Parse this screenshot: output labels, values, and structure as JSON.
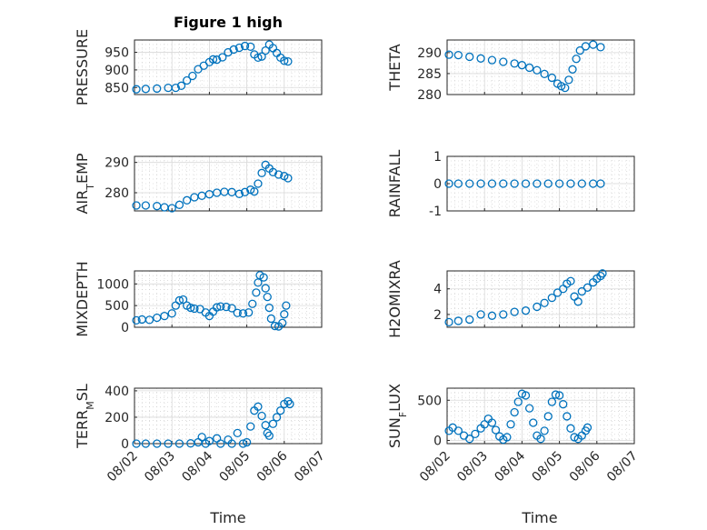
{
  "figure": {
    "title": "Figure 1 high",
    "xlabel": "Time"
  },
  "colors": {
    "series": "#0072BD",
    "grid": "#d9d9d9",
    "axis": "#262626"
  },
  "x_ticks": [
    "08/02",
    "08/03",
    "08/04",
    "08/05",
    "08/06",
    "08/07"
  ],
  "chart_data": [
    {
      "type": "scatter",
      "name": "PRESSURE",
      "ylabel": "PRESSURE",
      "xlim": [
        0,
        5
      ],
      "ylim": [
        830,
        985
      ],
      "yticks": [
        850,
        900,
        950
      ],
      "ytick_labels": [
        "850",
        "900",
        "950"
      ],
      "grid": true,
      "points": [
        [
          0.05,
          845
        ],
        [
          0.3,
          846
        ],
        [
          0.6,
          847
        ],
        [
          0.9,
          849
        ],
        [
          1.1,
          849
        ],
        [
          1.25,
          855
        ],
        [
          1.4,
          870
        ],
        [
          1.55,
          883
        ],
        [
          1.7,
          902
        ],
        [
          1.85,
          912
        ],
        [
          2.0,
          922
        ],
        [
          2.1,
          930
        ],
        [
          2.2,
          929
        ],
        [
          2.35,
          936
        ],
        [
          2.5,
          950
        ],
        [
          2.65,
          958
        ],
        [
          2.8,
          963
        ],
        [
          2.95,
          968
        ],
        [
          3.1,
          966
        ],
        [
          3.2,
          944
        ],
        [
          3.3,
          935
        ],
        [
          3.4,
          938
        ],
        [
          3.5,
          955
        ],
        [
          3.6,
          972
        ],
        [
          3.7,
          962
        ],
        [
          3.8,
          948
        ],
        [
          3.9,
          935
        ],
        [
          4.0,
          926
        ],
        [
          4.1,
          924
        ]
      ]
    },
    {
      "type": "scatter",
      "name": "THETA",
      "ylabel": "THETA",
      "xlim": [
        0,
        5
      ],
      "ylim": [
        280,
        293
      ],
      "yticks": [
        280,
        285,
        290
      ],
      "ytick_labels": [
        "280",
        "285",
        "290"
      ],
      "grid": true,
      "points": [
        [
          0.05,
          289.5
        ],
        [
          0.3,
          289.4
        ],
        [
          0.6,
          289.0
        ],
        [
          0.9,
          288.6
        ],
        [
          1.2,
          288.2
        ],
        [
          1.5,
          287.8
        ],
        [
          1.8,
          287.4
        ],
        [
          2.0,
          287.0
        ],
        [
          2.2,
          286.4
        ],
        [
          2.4,
          285.8
        ],
        [
          2.6,
          284.9
        ],
        [
          2.8,
          284.0
        ],
        [
          2.95,
          282.6
        ],
        [
          3.05,
          282.0
        ],
        [
          3.15,
          281.6
        ],
        [
          3.25,
          283.5
        ],
        [
          3.35,
          286.0
        ],
        [
          3.45,
          288.5
        ],
        [
          3.55,
          290.5
        ],
        [
          3.7,
          291.5
        ],
        [
          3.9,
          291.9
        ],
        [
          4.1,
          291.3
        ]
      ]
    },
    {
      "type": "scatter",
      "name": "AIR_TEMP",
      "ylabel": "AIR_TEMP",
      "xlim": [
        0,
        5
      ],
      "ylim": [
        274,
        292
      ],
      "yticks": [
        280,
        290
      ],
      "ytick_labels": [
        "280",
        "290"
      ],
      "grid": true,
      "points": [
        [
          0.05,
          275.8
        ],
        [
          0.3,
          275.8
        ],
        [
          0.6,
          275.6
        ],
        [
          0.8,
          275.2
        ],
        [
          1.0,
          274.9
        ],
        [
          1.2,
          276.0
        ],
        [
          1.4,
          277.5
        ],
        [
          1.6,
          278.5
        ],
        [
          1.8,
          279.0
        ],
        [
          2.0,
          279.5
        ],
        [
          2.2,
          280.0
        ],
        [
          2.4,
          280.3
        ],
        [
          2.6,
          280.2
        ],
        [
          2.8,
          279.6
        ],
        [
          2.95,
          280.2
        ],
        [
          3.1,
          281.0
        ],
        [
          3.2,
          280.4
        ],
        [
          3.3,
          283.0
        ],
        [
          3.4,
          286.5
        ],
        [
          3.5,
          289.2
        ],
        [
          3.6,
          288.0
        ],
        [
          3.7,
          286.8
        ],
        [
          3.85,
          286.0
        ],
        [
          4.0,
          285.5
        ],
        [
          4.1,
          284.8
        ]
      ]
    },
    {
      "type": "scatter",
      "name": "RAINFALL",
      "ylabel": "RAINFALL",
      "xlim": [
        0,
        5
      ],
      "ylim": [
        -1,
        1
      ],
      "yticks": [
        -1,
        0,
        1
      ],
      "ytick_labels": [
        "-1",
        "0",
        "1"
      ],
      "grid": true,
      "points": [
        [
          0.05,
          0
        ],
        [
          0.3,
          0
        ],
        [
          0.6,
          0
        ],
        [
          0.9,
          0
        ],
        [
          1.2,
          0
        ],
        [
          1.5,
          0
        ],
        [
          1.8,
          0
        ],
        [
          2.1,
          0
        ],
        [
          2.4,
          0
        ],
        [
          2.7,
          0
        ],
        [
          3.0,
          0
        ],
        [
          3.3,
          0
        ],
        [
          3.6,
          0
        ],
        [
          3.9,
          0
        ],
        [
          4.1,
          0
        ]
      ]
    },
    {
      "type": "scatter",
      "name": "MIXDEPTH",
      "ylabel": "MIXDEPTH",
      "xlim": [
        0,
        5
      ],
      "ylim": [
        0,
        1300
      ],
      "yticks": [
        0,
        500,
        1000
      ],
      "ytick_labels": [
        "0",
        "500",
        "1000"
      ],
      "grid": true,
      "points": [
        [
          0.05,
          160
        ],
        [
          0.2,
          180
        ],
        [
          0.4,
          170
        ],
        [
          0.6,
          220
        ],
        [
          0.8,
          260
        ],
        [
          1.0,
          320
        ],
        [
          1.1,
          500
        ],
        [
          1.2,
          620
        ],
        [
          1.3,
          640
        ],
        [
          1.4,
          500
        ],
        [
          1.5,
          450
        ],
        [
          1.6,
          430
        ],
        [
          1.75,
          420
        ],
        [
          1.9,
          340
        ],
        [
          2.0,
          260
        ],
        [
          2.1,
          360
        ],
        [
          2.2,
          460
        ],
        [
          2.3,
          480
        ],
        [
          2.45,
          470
        ],
        [
          2.6,
          440
        ],
        [
          2.75,
          330
        ],
        [
          2.9,
          320
        ],
        [
          3.05,
          340
        ],
        [
          3.15,
          540
        ],
        [
          3.25,
          800
        ],
        [
          3.3,
          1030
        ],
        [
          3.35,
          1200
        ],
        [
          3.45,
          1150
        ],
        [
          3.5,
          900
        ],
        [
          3.55,
          700
        ],
        [
          3.6,
          450
        ],
        [
          3.65,
          200
        ],
        [
          3.75,
          30
        ],
        [
          3.85,
          20
        ],
        [
          3.95,
          100
        ],
        [
          4.0,
          300
        ],
        [
          4.05,
          500
        ]
      ]
    },
    {
      "type": "scatter",
      "name": "H2OMIXRA",
      "ylabel": "H2OMIXRA",
      "xlim": [
        0,
        5
      ],
      "ylim": [
        1,
        5.4
      ],
      "yticks": [
        2,
        4
      ],
      "ytick_labels": [
        "2",
        "4"
      ],
      "grid": true,
      "points": [
        [
          0.05,
          1.4
        ],
        [
          0.3,
          1.5
        ],
        [
          0.6,
          1.6
        ],
        [
          0.9,
          2.0
        ],
        [
          1.2,
          1.9
        ],
        [
          1.5,
          2.0
        ],
        [
          1.8,
          2.2
        ],
        [
          2.1,
          2.3
        ],
        [
          2.4,
          2.6
        ],
        [
          2.6,
          2.9
        ],
        [
          2.8,
          3.3
        ],
        [
          2.95,
          3.7
        ],
        [
          3.1,
          4.0
        ],
        [
          3.2,
          4.4
        ],
        [
          3.3,
          4.6
        ],
        [
          3.4,
          3.4
        ],
        [
          3.5,
          3.0
        ],
        [
          3.6,
          3.8
        ],
        [
          3.75,
          4.1
        ],
        [
          3.9,
          4.5
        ],
        [
          4.0,
          4.8
        ],
        [
          4.1,
          5.0
        ],
        [
          4.15,
          5.2
        ]
      ]
    },
    {
      "type": "scatter",
      "name": "TERR_MSL",
      "ylabel": "TERR_MSL",
      "xlim": [
        0,
        5
      ],
      "ylim": [
        0,
        420
      ],
      "yticks": [
        0,
        200,
        400
      ],
      "ytick_labels": [
        "0",
        "200",
        "400"
      ],
      "grid": true,
      "points": [
        [
          0.05,
          0
        ],
        [
          0.3,
          0
        ],
        [
          0.6,
          0
        ],
        [
          0.9,
          0
        ],
        [
          1.2,
          0
        ],
        [
          1.5,
          2
        ],
        [
          1.7,
          10
        ],
        [
          1.8,
          50
        ],
        [
          1.9,
          0
        ],
        [
          2.0,
          20
        ],
        [
          2.2,
          40
        ],
        [
          2.3,
          0
        ],
        [
          2.5,
          30
        ],
        [
          2.6,
          0
        ],
        [
          2.75,
          80
        ],
        [
          2.9,
          0
        ],
        [
          3.0,
          10
        ],
        [
          3.1,
          130
        ],
        [
          3.2,
          250
        ],
        [
          3.3,
          280
        ],
        [
          3.4,
          210
        ],
        [
          3.5,
          140
        ],
        [
          3.55,
          80
        ],
        [
          3.6,
          60
        ],
        [
          3.7,
          150
        ],
        [
          3.8,
          200
        ],
        [
          3.9,
          250
        ],
        [
          4.0,
          300
        ],
        [
          4.1,
          320
        ],
        [
          4.15,
          300
        ]
      ]
    },
    {
      "type": "scatter",
      "name": "SUN_FLUX",
      "ylabel": "SUN_FLUX",
      "xlim": [
        0,
        5
      ],
      "ylim": [
        -40,
        650
      ],
      "yticks": [
        0,
        500
      ],
      "ytick_labels": [
        "0",
        "500"
      ],
      "grid": true,
      "points": [
        [
          0.05,
          120
        ],
        [
          0.15,
          160
        ],
        [
          0.3,
          120
        ],
        [
          0.45,
          60
        ],
        [
          0.6,
          20
        ],
        [
          0.75,
          80
        ],
        [
          0.9,
          150
        ],
        [
          1.0,
          200
        ],
        [
          1.1,
          270
        ],
        [
          1.2,
          220
        ],
        [
          1.3,
          130
        ],
        [
          1.4,
          50
        ],
        [
          1.5,
          10
        ],
        [
          1.6,
          40
        ],
        [
          1.7,
          200
        ],
        [
          1.8,
          350
        ],
        [
          1.9,
          480
        ],
        [
          2.0,
          580
        ],
        [
          2.1,
          560
        ],
        [
          2.2,
          400
        ],
        [
          2.3,
          220
        ],
        [
          2.4,
          60
        ],
        [
          2.5,
          20
        ],
        [
          2.6,
          120
        ],
        [
          2.7,
          300
        ],
        [
          2.8,
          480
        ],
        [
          2.9,
          570
        ],
        [
          3.0,
          560
        ],
        [
          3.1,
          450
        ],
        [
          3.2,
          300
        ],
        [
          3.3,
          150
        ],
        [
          3.4,
          40
        ],
        [
          3.5,
          20
        ],
        [
          3.6,
          60
        ],
        [
          3.7,
          120
        ],
        [
          3.75,
          160
        ]
      ]
    }
  ]
}
